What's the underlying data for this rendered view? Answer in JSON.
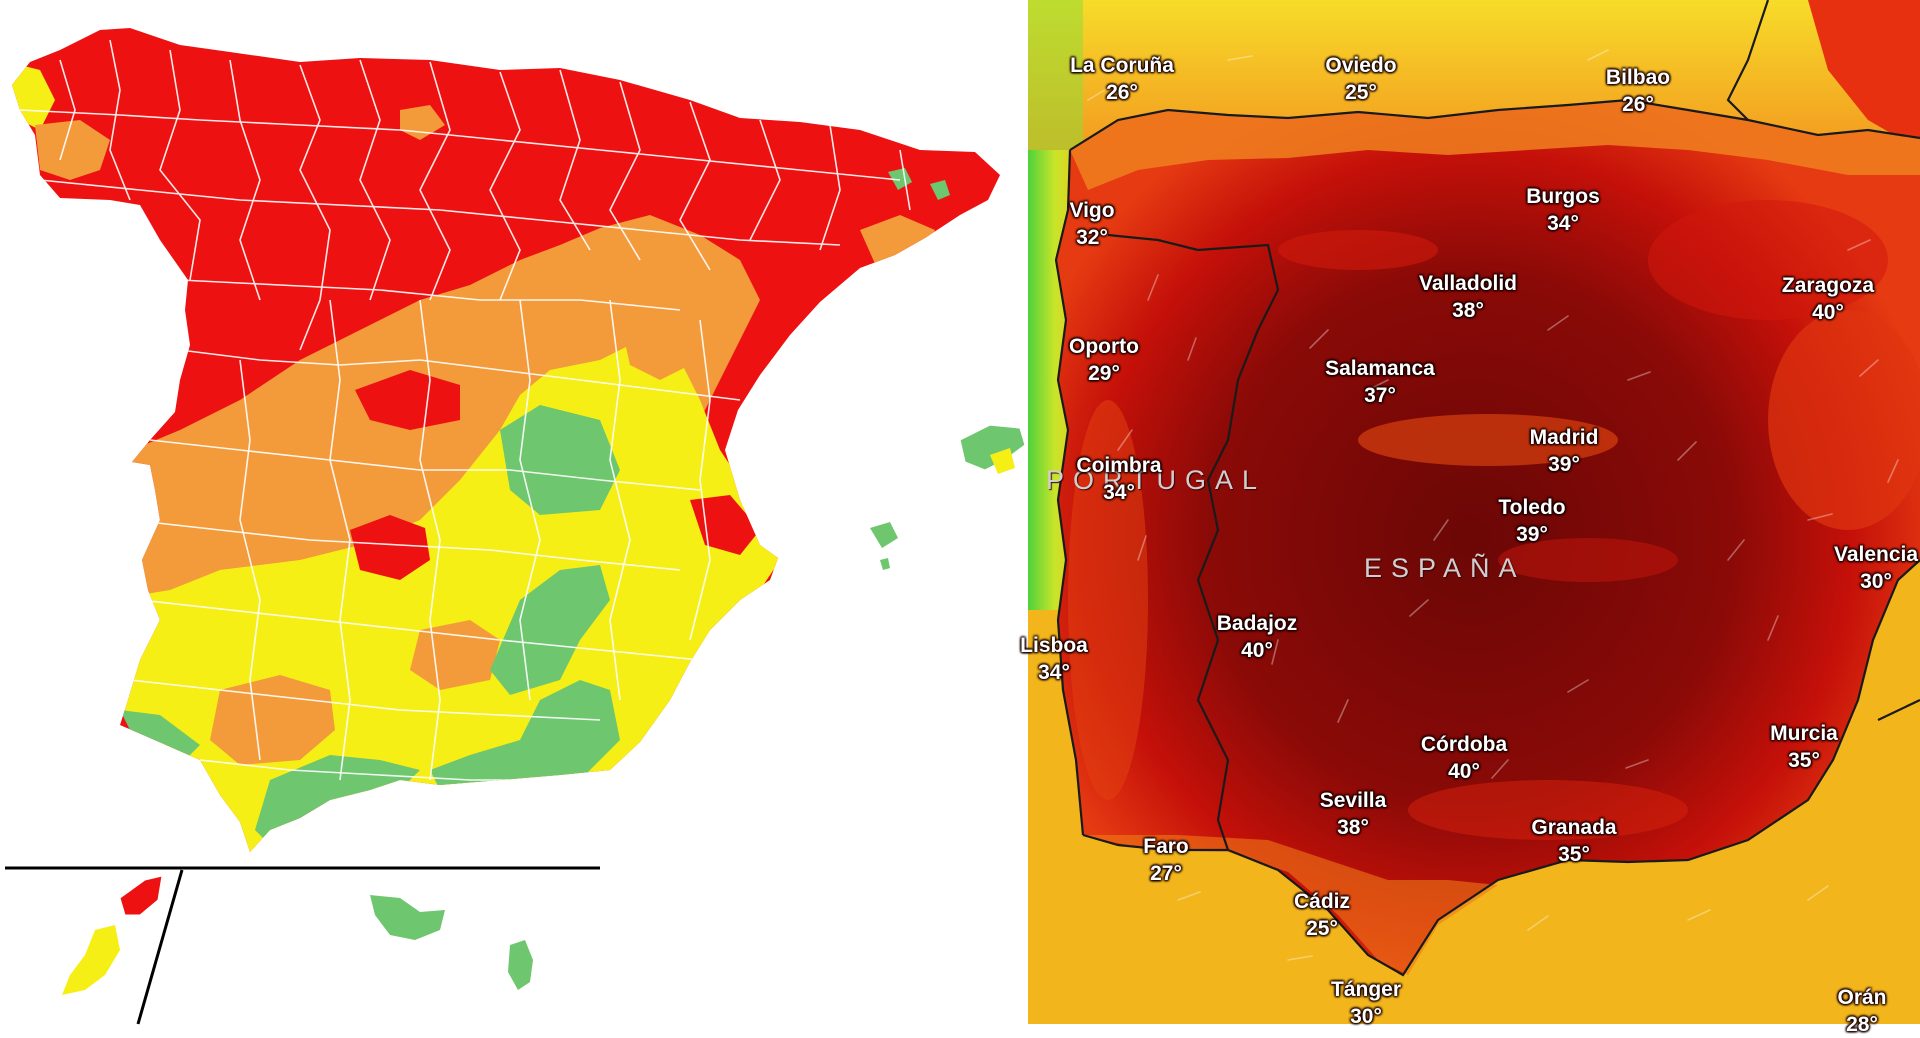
{
  "left_map": {
    "colors": {
      "red": "#ee1111",
      "orange": "#f39a3b",
      "yellow": "#f6ef16",
      "green": "#6ec66e",
      "border": "#ffffff"
    }
  },
  "right_map": {
    "colors": {
      "extreme": "#7a0806",
      "very_hot": "#c41009",
      "hot": "#ea3a10",
      "warm": "#f7a020",
      "mild": "#f7e12a",
      "cool": "#54d63c"
    },
    "country_labels": [
      {
        "id": "portugal",
        "text": "PORTUGAL"
      },
      {
        "id": "espana",
        "text": "ESPAÑA"
      }
    ],
    "cities": [
      {
        "id": "la-coruna",
        "name": "La Coruña",
        "temp": "26°"
      },
      {
        "id": "oviedo",
        "name": "Oviedo",
        "temp": "25°"
      },
      {
        "id": "bilbao",
        "name": "Bilbao",
        "temp": "26°"
      },
      {
        "id": "vigo",
        "name": "Vigo",
        "temp": "32°"
      },
      {
        "id": "burgos",
        "name": "Burgos",
        "temp": "34°"
      },
      {
        "id": "valladolid",
        "name": "Valladolid",
        "temp": "38°"
      },
      {
        "id": "zaragoza",
        "name": "Zaragoza",
        "temp": "40°"
      },
      {
        "id": "oporto",
        "name": "Oporto",
        "temp": "29°"
      },
      {
        "id": "salamanca",
        "name": "Salamanca",
        "temp": "37°"
      },
      {
        "id": "madrid",
        "name": "Madrid",
        "temp": "39°"
      },
      {
        "id": "coimbra",
        "name": "Coimbra",
        "temp": "34°"
      },
      {
        "id": "toledo",
        "name": "Toledo",
        "temp": "39°"
      },
      {
        "id": "valencia",
        "name": "Valencia",
        "temp": "30°"
      },
      {
        "id": "badajoz",
        "name": "Badajoz",
        "temp": "40°"
      },
      {
        "id": "lisboa",
        "name": "Lisboa",
        "temp": "34°"
      },
      {
        "id": "murcia",
        "name": "Murcia",
        "temp": "35°"
      },
      {
        "id": "cordoba",
        "name": "Córdoba",
        "temp": "40°"
      },
      {
        "id": "sevilla",
        "name": "Sevilla",
        "temp": "38°"
      },
      {
        "id": "granada",
        "name": "Granada",
        "temp": "35°"
      },
      {
        "id": "faro",
        "name": "Faro",
        "temp": "27°"
      },
      {
        "id": "cadiz",
        "name": "Cádiz",
        "temp": "25°"
      },
      {
        "id": "tanger",
        "name": "Tánger",
        "temp": "30°"
      },
      {
        "id": "oran",
        "name": "Orán",
        "temp": "28°"
      }
    ]
  }
}
